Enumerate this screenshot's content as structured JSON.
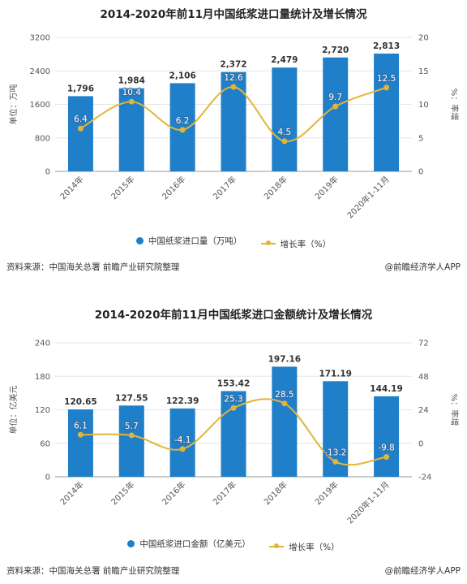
{
  "colors": {
    "bar": "#1f7fc9",
    "line": "#e4b43a",
    "grid": "#e6e6e6",
    "axis": "#999999"
  },
  "source_label": "资料来源：中国海关总署 前瞻产业研究院整理",
  "credit_label": "@前瞻经济学人APP",
  "chart_data": [
    {
      "type": "bar",
      "title": "2014-2020年前11月中国纸浆进口量统计及增长情况",
      "categories": [
        "2014年",
        "2015年",
        "2016年",
        "2017年",
        "2018年",
        "2019年",
        "2020年1-11月"
      ],
      "series": [
        {
          "name": "中国纸浆进口量（万吨）",
          "type": "bar",
          "axis": "left",
          "values": [
            1796,
            1984,
            2106,
            2372,
            2479,
            2720,
            2813
          ],
          "labels": [
            "1,796",
            "1,984",
            "2,106",
            "2,372",
            "2,479",
            "2,720",
            "2,813"
          ]
        },
        {
          "name": "增长率（%）",
          "type": "line",
          "axis": "right",
          "values": [
            6.4,
            10.4,
            6.2,
            12.6,
            4.5,
            9.7,
            12.5
          ],
          "labels": [
            "6.4",
            "10.4",
            "6.2",
            "12.6",
            "4.5",
            "9.7",
            "12.5"
          ]
        }
      ],
      "ylabel": "单位：万吨",
      "y2label": "%：率增",
      "ylim": [
        0,
        3200
      ],
      "y2lim": [
        0,
        20
      ],
      "yticks": [
        "0",
        "800",
        "1600",
        "2400",
        "3200"
      ],
      "y2ticks": [
        "0",
        "5",
        "10",
        "15",
        "20"
      ],
      "grid": true,
      "legend": "bottom"
    },
    {
      "type": "bar",
      "title": "2014-2020年前11月中国纸浆进口金额统计及增长情况",
      "categories": [
        "2014年",
        "2015年",
        "2016年",
        "2017年",
        "2018年",
        "2019年",
        "2020年1-11月"
      ],
      "series": [
        {
          "name": "中国纸浆进口金额（亿美元）",
          "type": "bar",
          "axis": "left",
          "values": [
            120.65,
            127.55,
            122.39,
            153.42,
            197.16,
            171.19,
            144.19
          ],
          "labels": [
            "120.65",
            "127.55",
            "122.39",
            "153.42",
            "197.16",
            "171.19",
            "144.19"
          ]
        },
        {
          "name": "增长率（%）",
          "type": "line",
          "axis": "right",
          "values": [
            6.1,
            5.7,
            -4.1,
            25.3,
            28.5,
            -13.2,
            -9.8
          ],
          "labels": [
            "6.1",
            "5.7",
            "-4.1",
            "25.3",
            "28.5",
            "-13.2",
            "-9.8"
          ]
        }
      ],
      "ylabel": "单位：亿美元",
      "y2label": "%：率增",
      "ylim": [
        0,
        240
      ],
      "y2lim": [
        -24,
        72
      ],
      "yticks": [
        "0",
        "60",
        "120",
        "180",
        "240"
      ],
      "y2ticks": [
        "-24",
        "0",
        "24",
        "48",
        "72"
      ],
      "grid": true,
      "legend": "bottom"
    }
  ]
}
